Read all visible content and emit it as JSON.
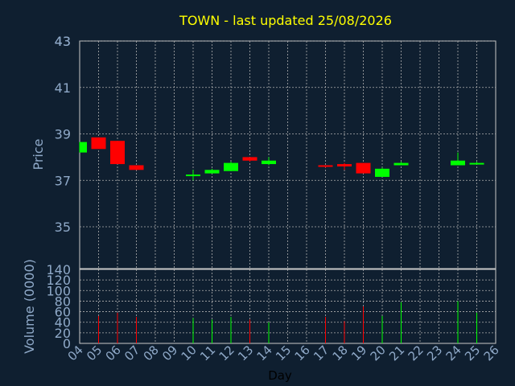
{
  "chart_data": {
    "type": "candlestick",
    "title": "TOWN - last updated 25/08/2026",
    "xlabel": "Day",
    "ylabel": "Price",
    "volume_label": "Volume (0000)",
    "x_ticks": [
      "04",
      "05",
      "06",
      "07",
      "08",
      "09",
      "10",
      "11",
      "12",
      "13",
      "14",
      "15",
      "16",
      "17",
      "18",
      "19",
      "20",
      "21",
      "22",
      "23",
      "24",
      "25",
      "26"
    ],
    "x_range": [
      4,
      26
    ],
    "price_ticks": [
      "35",
      "37",
      "39",
      "41",
      "43"
    ],
    "price_range": [
      33.2,
      43
    ],
    "volume_ticks": [
      "0",
      "20",
      "40",
      "60",
      "80",
      "100",
      "120",
      "140"
    ],
    "volume_range": [
      0,
      140
    ],
    "grid": true,
    "colors": {
      "background": "#0f1f30",
      "title": "#ffff00",
      "axis_text": "#8fa9c8",
      "up": "#00ff00",
      "down": "#ff0000",
      "grid": "#b0b0b0"
    },
    "candles": [
      {
        "day": 4,
        "open": 38.2,
        "high": 38.65,
        "low": 38.2,
        "close": 38.65,
        "volume": 0
      },
      {
        "day": 5,
        "open": 38.85,
        "high": 38.85,
        "low": 38.35,
        "close": 38.35,
        "volume": 52
      },
      {
        "day": 6,
        "open": 38.7,
        "high": 38.7,
        "low": 37.7,
        "close": 37.7,
        "volume": 58
      },
      {
        "day": 7,
        "open": 37.65,
        "high": 37.65,
        "low": 37.45,
        "close": 37.45,
        "volume": 50
      },
      {
        "day": 10,
        "open": 37.2,
        "high": 37.45,
        "low": 37.0,
        "close": 37.25,
        "volume": 48
      },
      {
        "day": 11,
        "open": 37.3,
        "high": 37.5,
        "low": 37.3,
        "close": 37.45,
        "volume": 45
      },
      {
        "day": 12,
        "open": 37.4,
        "high": 37.8,
        "low": 37.4,
        "close": 37.75,
        "volume": 50
      },
      {
        "day": 13,
        "open": 38.0,
        "high": 38.0,
        "low": 37.8,
        "close": 37.85,
        "volume": 45
      },
      {
        "day": 14,
        "open": 37.7,
        "high": 38.0,
        "low": 37.65,
        "close": 37.85,
        "volume": 40
      },
      {
        "day": 17,
        "open": 37.65,
        "high": 37.65,
        "low": 37.55,
        "close": 37.6,
        "volume": 50
      },
      {
        "day": 18,
        "open": 37.7,
        "high": 37.75,
        "low": 37.45,
        "close": 37.6,
        "volume": 42
      },
      {
        "day": 19,
        "open": 37.75,
        "high": 37.75,
        "low": 37.3,
        "close": 37.3,
        "volume": 70
      },
      {
        "day": 20,
        "open": 37.15,
        "high": 37.55,
        "low": 37.15,
        "close": 37.5,
        "volume": 52
      },
      {
        "day": 21,
        "open": 37.65,
        "high": 37.8,
        "low": 37.65,
        "close": 37.75,
        "volume": 78
      },
      {
        "day": 24,
        "open": 37.65,
        "high": 38.2,
        "low": 37.65,
        "close": 37.85,
        "volume": 80
      },
      {
        "day": 25,
        "open": 37.7,
        "high": 37.8,
        "low": 37.7,
        "close": 37.75,
        "volume": 58
      }
    ]
  }
}
